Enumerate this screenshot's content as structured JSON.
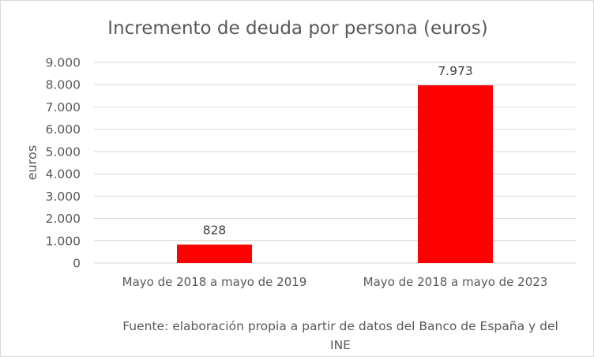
{
  "chart_data": {
    "type": "bar",
    "title": "Incremento de deuda por persona (euros)",
    "xlabel": "",
    "ylabel": "euros",
    "categories": [
      "Mayo de 2018 a mayo de 2019",
      "Mayo de 2018 a mayo de 2023"
    ],
    "values": [
      828,
      7973
    ],
    "data_labels": [
      "828",
      "7.973"
    ],
    "ylim": [
      0,
      9000
    ],
    "yticks": [
      0,
      1000,
      2000,
      3000,
      4000,
      5000,
      6000,
      7000,
      8000,
      9000
    ],
    "ytick_labels": [
      "0",
      "1.000",
      "2.000",
      "3.000",
      "4.000",
      "5.000",
      "6.000",
      "7.000",
      "8.000",
      "9.000"
    ],
    "grid": true,
    "bar_color": "#ff0000",
    "source": "Fuente: elaboración propia a partir de datos del Banco de España y del INE"
  }
}
